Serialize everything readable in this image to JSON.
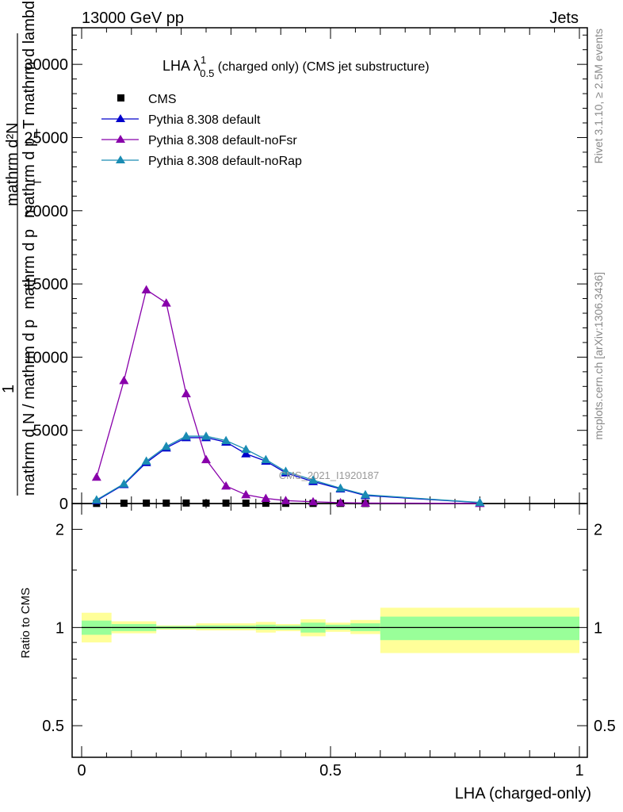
{
  "header": {
    "left": "13000 GeV pp",
    "right": "Jets"
  },
  "title": {
    "main": "LHA λ",
    "sup": "1",
    "sub": "0.5",
    "rest": " (charged only) (CMS jet substructure)"
  },
  "side_labels": {
    "rivet": "Rivet 3.1.10, ≥ 2.5M events",
    "mcplots": "mcplots.cern.ch [arXiv:1306.3436]"
  },
  "watermark": "CMS_2021_I1920187",
  "y_label": {
    "numerator": "1",
    "denominator": "mathrm d N / mathrm d p",
    "line2": "mathrm d p",
    "sub_T": "T",
    "top_line1": "mathrm d²N",
    "top_line2": "mathrm d p_T mathrm d lambda"
  },
  "ratio_ylabel": "Ratio to CMS",
  "x_label": "LHA (charged-only)",
  "colors": {
    "cms": "#000000",
    "default": "#0000cc",
    "noFsr": "#8800aa",
    "noRap": "#1a8cb3",
    "band_inner": "#99ff99",
    "band_outer": "#ffff99"
  },
  "chart_data": {
    "type": "line",
    "xlim": [
      -0.02,
      1.0
    ],
    "ylim": [
      0,
      32500
    ],
    "y_ticks": [
      {
        "value": 0,
        "label": "0"
      },
      {
        "value": 5000,
        "label": "5000"
      },
      {
        "value": 10000,
        "label": "10000"
      },
      {
        "value": 15000,
        "label": "15000"
      },
      {
        "value": 20000,
        "label": "20000"
      },
      {
        "value": 25000,
        "label": "25000"
      },
      {
        "value": 30000,
        "label": "30000"
      }
    ],
    "x_ticks": [
      {
        "value": 0,
        "label": "0"
      },
      {
        "value": 0.5,
        "label": "0.5"
      },
      {
        "value": 1,
        "label": "1"
      }
    ],
    "legend": [
      "CMS",
      "Pythia 8.308 default",
      "Pythia 8.308 default-noFsr",
      "Pythia 8.308 default-noRap"
    ],
    "series": [
      {
        "name": "CMS",
        "marker": "square",
        "x": [
          0.03,
          0.085,
          0.13,
          0.17,
          0.21,
          0.25,
          0.29,
          0.33,
          0.37,
          0.41,
          0.465,
          0.52,
          0.57
        ],
        "values": [
          10,
          20,
          30,
          30,
          35,
          30,
          30,
          25,
          20,
          15,
          10,
          10,
          5
        ]
      },
      {
        "name": "Pythia 8.308 default",
        "marker": "triangle",
        "x": [
          0.03,
          0.085,
          0.13,
          0.17,
          0.21,
          0.25,
          0.29,
          0.33,
          0.37,
          0.41,
          0.465,
          0.52,
          0.57,
          0.8
        ],
        "values": [
          200,
          1300,
          2800,
          3800,
          4500,
          4500,
          4200,
          3400,
          2900,
          2100,
          1500,
          1000,
          550,
          60
        ]
      },
      {
        "name": "Pythia 8.308 default-noFsr",
        "marker": "triangle",
        "x": [
          0.03,
          0.085,
          0.13,
          0.17,
          0.21,
          0.25,
          0.29,
          0.33,
          0.37,
          0.41,
          0.465,
          0.52,
          0.57,
          0.8
        ],
        "values": [
          1800,
          8400,
          14600,
          13700,
          7500,
          3000,
          1200,
          600,
          350,
          200,
          120,
          60,
          30,
          10
        ]
      },
      {
        "name": "Pythia 8.308 default-noRap",
        "marker": "triangle",
        "x": [
          0.03,
          0.085,
          0.13,
          0.17,
          0.21,
          0.25,
          0.29,
          0.33,
          0.37,
          0.41,
          0.465,
          0.52,
          0.57,
          0.8
        ],
        "values": [
          250,
          1350,
          2900,
          3900,
          4600,
          4600,
          4300,
          3700,
          3000,
          2200,
          1600,
          1050,
          600,
          70
        ]
      }
    ],
    "ratio": {
      "ylim": [
        0.4,
        2.4
      ],
      "log": true,
      "y_ticks": [
        {
          "value": 0.5,
          "label": "0.5"
        },
        {
          "value": 1,
          "label": "1"
        },
        {
          "value": 2,
          "label": "2"
        }
      ],
      "bins": [
        {
          "x0": 0.0,
          "x1": 0.06,
          "inner": [
            0.95,
            1.05
          ],
          "outer": [
            0.9,
            1.11
          ]
        },
        {
          "x0": 0.06,
          "x1": 0.15,
          "inner": [
            0.975,
            1.025
          ],
          "outer": [
            0.96,
            1.045
          ]
        },
        {
          "x0": 0.15,
          "x1": 0.23,
          "inner": [
            0.99,
            1.01
          ],
          "outer": [
            0.985,
            1.015
          ]
        },
        {
          "x0": 0.23,
          "x1": 0.35,
          "inner": [
            0.99,
            1.015
          ],
          "outer": [
            0.98,
            1.03
          ]
        },
        {
          "x0": 0.35,
          "x1": 0.39,
          "inner": [
            0.985,
            1.02
          ],
          "outer": [
            0.965,
            1.04
          ]
        },
        {
          "x0": 0.39,
          "x1": 0.44,
          "inner": [
            0.985,
            1.015
          ],
          "outer": [
            0.975,
            1.025
          ]
        },
        {
          "x0": 0.44,
          "x1": 0.49,
          "inner": [
            0.965,
            1.035
          ],
          "outer": [
            0.94,
            1.06
          ]
        },
        {
          "x0": 0.49,
          "x1": 0.54,
          "inner": [
            0.985,
            1.02
          ],
          "outer": [
            0.97,
            1.035
          ]
        },
        {
          "x0": 0.54,
          "x1": 0.6,
          "inner": [
            0.975,
            1.03
          ],
          "outer": [
            0.955,
            1.055
          ]
        },
        {
          "x0": 0.6,
          "x1": 1.0,
          "inner": [
            0.915,
            1.08
          ],
          "outer": [
            0.835,
            1.15
          ]
        }
      ]
    }
  }
}
